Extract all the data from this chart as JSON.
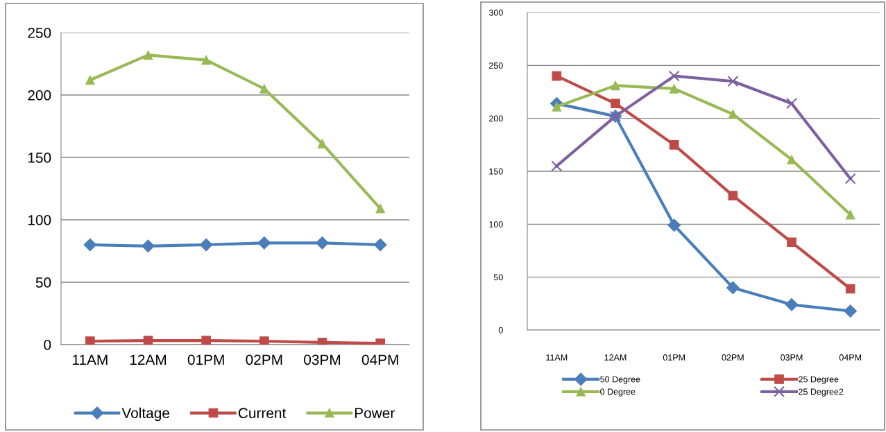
{
  "chart_data": [
    {
      "type": "line",
      "categories": [
        "11AM",
        "12AM",
        "01PM",
        "02PM",
        "03PM",
        "04PM"
      ],
      "series": [
        {
          "name": "Voltage",
          "color": "#4a7ebb",
          "marker": "diamond",
          "values": [
            80,
            79,
            80,
            81.5,
            81.5,
            80
          ]
        },
        {
          "name": "Current",
          "color": "#be4b48",
          "marker": "square",
          "values": [
            2.8,
            3.3,
            3.3,
            2.8,
            1.7,
            1.1
          ]
        },
        {
          "name": "Power",
          "color": "#98b954",
          "marker": "triangle",
          "values": [
            212,
            232,
            228,
            205,
            161,
            109
          ]
        }
      ],
      "ylim": [
        0,
        250
      ],
      "yticks": [
        0,
        50,
        100,
        150,
        200,
        250
      ],
      "grid": "y",
      "legend": "bottom"
    },
    {
      "type": "line",
      "categories": [
        "11AM",
        "12AM",
        "01PM",
        "02PM",
        "03PM",
        "04PM"
      ],
      "series": [
        {
          "name": "50 Degree",
          "color": "#4a7ebb",
          "marker": "diamond",
          "values": [
            214,
            202,
            99,
            40,
            24,
            18
          ]
        },
        {
          "name": "25 Degree",
          "color": "#be4b48",
          "marker": "square",
          "values": [
            240,
            214,
            175,
            127,
            83,
            39
          ]
        },
        {
          "name": "0 Degree",
          "color": "#98b954",
          "marker": "triangle",
          "values": [
            211,
            231,
            228,
            204,
            161,
            109
          ]
        },
        {
          "name": "25 Degree2",
          "color": "#7d60a0",
          "marker": "cross",
          "values": [
            155,
            202,
            240,
            235,
            214,
            143
          ]
        }
      ],
      "ylim": [
        0,
        300
      ],
      "yticks": [
        0,
        50,
        100,
        150,
        200,
        250,
        300
      ],
      "grid": "y",
      "legend": "bottom"
    }
  ]
}
